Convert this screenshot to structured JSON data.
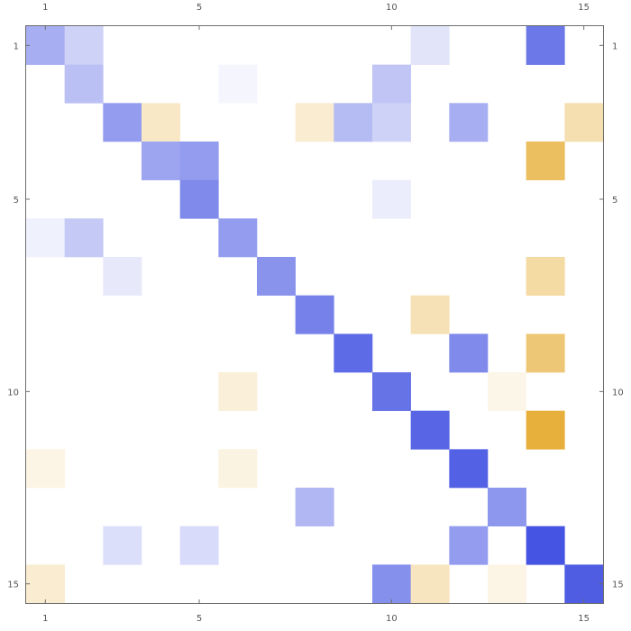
{
  "chart_data": {
    "type": "heatmap",
    "title": "",
    "xlabel": "",
    "ylabel": "",
    "rows": 15,
    "cols": 15,
    "x_ticks": [
      1,
      5,
      10,
      15
    ],
    "y_ticks": [
      1,
      5,
      10,
      15
    ],
    "legend": "none",
    "grid": false,
    "color_scale": {
      "negative_max": "#e3a21a",
      "zero": "#ffffff",
      "positive_max": "#3b4be0"
    },
    "value_range": [
      -1,
      1
    ],
    "cells": [
      {
        "row": 1,
        "col": 1,
        "value": 0.45
      },
      {
        "row": 1,
        "col": 2,
        "value": 0.25
      },
      {
        "row": 1,
        "col": 11,
        "value": 0.15
      },
      {
        "row": 1,
        "col": 14,
        "value": 0.75
      },
      {
        "row": 2,
        "col": 2,
        "value": 0.35
      },
      {
        "row": 2,
        "col": 6,
        "value": 0.05
      },
      {
        "row": 2,
        "col": 10,
        "value": 0.32
      },
      {
        "row": 3,
        "col": 3,
        "value": 0.55
      },
      {
        "row": 3,
        "col": 4,
        "value": -0.25
      },
      {
        "row": 3,
        "col": 8,
        "value": -0.2
      },
      {
        "row": 3,
        "col": 9,
        "value": 0.38
      },
      {
        "row": 3,
        "col": 10,
        "value": 0.25
      },
      {
        "row": 3,
        "col": 12,
        "value": 0.45
      },
      {
        "row": 3,
        "col": 15,
        "value": -0.35
      },
      {
        "row": 4,
        "col": 4,
        "value": 0.5
      },
      {
        "row": 4,
        "col": 5,
        "value": 0.55
      },
      {
        "row": 4,
        "col": 14,
        "value": -0.7
      },
      {
        "row": 5,
        "col": 5,
        "value": 0.65
      },
      {
        "row": 5,
        "col": 10,
        "value": 0.1
      },
      {
        "row": 6,
        "col": 1,
        "value": 0.08
      },
      {
        "row": 6,
        "col": 2,
        "value": 0.3
      },
      {
        "row": 6,
        "col": 6,
        "value": 0.55
      },
      {
        "row": 7,
        "col": 3,
        "value": 0.12
      },
      {
        "row": 7,
        "col": 14,
        "value": -0.4
      },
      {
        "row": 7,
        "col": 7,
        "value": 0.6
      },
      {
        "row": 8,
        "col": 8,
        "value": 0.7
      },
      {
        "row": 8,
        "col": 11,
        "value": -0.32
      },
      {
        "row": 9,
        "col": 9,
        "value": 0.82
      },
      {
        "row": 9,
        "col": 12,
        "value": 0.65
      },
      {
        "row": 9,
        "col": 14,
        "value": -0.6
      },
      {
        "row": 10,
        "col": 6,
        "value": -0.17
      },
      {
        "row": 10,
        "col": 10,
        "value": 0.78
      },
      {
        "row": 10,
        "col": 13,
        "value": -0.1
      },
      {
        "row": 11,
        "col": 11,
        "value": 0.85
      },
      {
        "row": 11,
        "col": 14,
        "value": -0.85
      },
      {
        "row": 12,
        "col": 1,
        "value": -0.12
      },
      {
        "row": 12,
        "col": 6,
        "value": -0.13
      },
      {
        "row": 12,
        "col": 12,
        "value": 0.88
      },
      {
        "row": 13,
        "col": 8,
        "value": 0.4
      },
      {
        "row": 13,
        "col": 13,
        "value": 0.58
      },
      {
        "row": 14,
        "col": 3,
        "value": 0.18
      },
      {
        "row": 14,
        "col": 5,
        "value": 0.2
      },
      {
        "row": 14,
        "col": 12,
        "value": 0.55
      },
      {
        "row": 14,
        "col": 14,
        "value": 0.95
      },
      {
        "row": 15,
        "col": 1,
        "value": -0.2
      },
      {
        "row": 15,
        "col": 10,
        "value": 0.62
      },
      {
        "row": 15,
        "col": 11,
        "value": -0.28
      },
      {
        "row": 15,
        "col": 13,
        "value": -0.12
      },
      {
        "row": 15,
        "col": 15,
        "value": 0.9
      }
    ]
  }
}
